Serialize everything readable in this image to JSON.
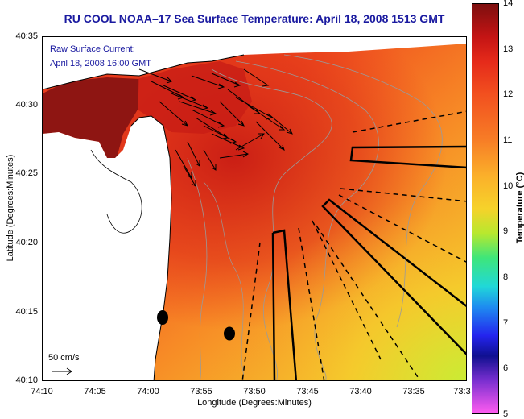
{
  "title": "RU COOL  NOAA–17  Sea Surface Temperature:  April 18, 2008 1513 GMT",
  "legend": {
    "line1": "Raw Surface Current:",
    "line2": "April 18, 2008 16:00 GMT"
  },
  "scale_label": "50 cm/s",
  "axes": {
    "x_title": "Longitude (Degrees:Minutes)",
    "y_title": "Latitude (Degrees:Minutes)",
    "y_ticks": [
      "40:35",
      "40:30",
      "40:25",
      "40:20",
      "40:15",
      "40:10"
    ],
    "x_ticks": [
      "74:10",
      "74:05",
      "74:00",
      "73:55",
      "73:50",
      "73:45",
      "73:40",
      "73:35",
      "73:3"
    ]
  },
  "colorbar": {
    "title": "Temperature (°C)",
    "ticks": [
      "14",
      "13",
      "12",
      "11",
      "10",
      "9",
      "8",
      "7",
      "6",
      "5"
    ],
    "range": [
      5,
      14
    ]
  }
}
